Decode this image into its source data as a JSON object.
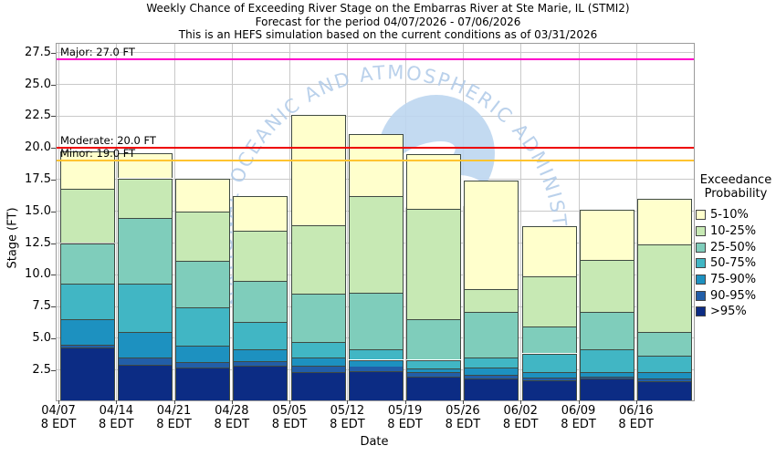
{
  "title": {
    "line1": "Weekly Chance of Exceeding River Stage on the Embarras River at Ste Marie, IL (STMI2)",
    "line2": "Forecast for the period 04/07/2026 - 07/06/2026",
    "line3": "This is an HEFS simulation based on the current conditions as of 03/31/2026"
  },
  "watermark": {
    "text": "NATIONAL OCEANIC AND ATMOSPHERIC ADMINISTRATION",
    "text_color": "#aec9e8",
    "emblem_color": "#bdd6f0"
  },
  "axes": {
    "y_label": "Stage (FT)",
    "x_label": "Date",
    "y_ticks": [
      "2.5",
      "5.0",
      "7.5",
      "10.0",
      "12.5",
      "15.0",
      "17.5",
      "20.0",
      "22.5",
      "25.0",
      "27.5"
    ],
    "x_ticks": [
      {
        "date": "04/07",
        "time": "8 EDT"
      },
      {
        "date": "04/14",
        "time": "8 EDT"
      },
      {
        "date": "04/21",
        "time": "8 EDT"
      },
      {
        "date": "04/28",
        "time": "8 EDT"
      },
      {
        "date": "05/05",
        "time": "8 EDT"
      },
      {
        "date": "05/12",
        "time": "8 EDT"
      },
      {
        "date": "05/19",
        "time": "8 EDT"
      },
      {
        "date": "05/26",
        "time": "8 EDT"
      },
      {
        "date": "06/02",
        "time": "8 EDT"
      },
      {
        "date": "06/09",
        "time": "8 EDT"
      },
      {
        "date": "06/16",
        "time": "8 EDT"
      }
    ]
  },
  "thresholds": [
    {
      "name": "Major",
      "label": "Major: 27.0 FT",
      "value": 27.0,
      "color": "#ff00cc"
    },
    {
      "name": "Moderate",
      "label": "Moderate: 20.0 FT",
      "value": 20.0,
      "color": "#ee0000"
    },
    {
      "name": "Minor",
      "label": "Minor: 19.0 FT",
      "value": 19.0,
      "color": "#ffc430"
    }
  ],
  "legend": {
    "title_line1": "Exceedance",
    "title_line2": "Probability",
    "items": [
      {
        "label": "5-10%",
        "color": "#ffffcc"
      },
      {
        "label": "10-25%",
        "color": "#c7e9b4"
      },
      {
        "label": "25-50%",
        "color": "#7fcdbb"
      },
      {
        "label": "50-75%",
        "color": "#41b6c4"
      },
      {
        "label": "75-90%",
        "color": "#1d91c0"
      },
      {
        "label": "90-95%",
        "color": "#225ea8"
      },
      {
        "label": ">95%",
        "color": "#0c2c84"
      }
    ]
  },
  "chart_data": {
    "type": "bar",
    "stacked": true,
    "title": "Weekly Chance of Exceeding River Stage on the Embarras River at Ste Marie, IL (STMI2)",
    "xlabel": "Date",
    "ylabel": "Stage (FT)",
    "ylim": [
      0.1,
      28.2
    ],
    "grid": true,
    "legend_position": "right",
    "categories": [
      "04/07",
      "04/14",
      "04/21",
      "04/28",
      "05/05",
      "05/12",
      "05/19",
      "05/26",
      "06/02",
      "06/09",
      "06/16"
    ],
    "series_note": "values are river stage (FT) at the top of each exceedance-probability band, stacked bottom-up from ylim minimum",
    "series": [
      {
        "name": ">95%",
        "color": "#0c2c84",
        "values": [
          4.3,
          2.9,
          2.7,
          2.8,
          2.3,
          2.4,
          2.0,
          1.8,
          1.7,
          1.8,
          1.6
        ]
      },
      {
        "name": "90-95%",
        "color": "#225ea8",
        "values": [
          4.5,
          3.5,
          3.1,
          3.2,
          2.8,
          2.8,
          2.3,
          2.1,
          1.9,
          2.0,
          1.8
        ]
      },
      {
        "name": "75-90%",
        "color": "#1d91c0",
        "values": [
          6.5,
          5.5,
          4.4,
          4.1,
          3.5,
          3.3,
          2.6,
          2.7,
          2.3,
          2.3,
          2.3
        ]
      },
      {
        "name": "50-75%",
        "color": "#41b6c4",
        "values": [
          9.3,
          9.3,
          7.4,
          6.3,
          4.7,
          4.1,
          3.3,
          3.5,
          3.8,
          4.1,
          3.6
        ]
      },
      {
        "name": "25-50%",
        "color": "#7fcdbb",
        "values": [
          12.5,
          14.5,
          11.1,
          9.5,
          8.5,
          8.6,
          6.5,
          7.1,
          5.9,
          7.1,
          5.5
        ]
      },
      {
        "name": "10-25%",
        "color": "#c7e9b4",
        "values": [
          16.8,
          17.6,
          15.0,
          13.5,
          13.9,
          16.2,
          15.2,
          8.9,
          9.9,
          11.2,
          12.4
        ]
      },
      {
        "name": "5-10%",
        "color": "#ffffcc",
        "values": [
          19.7,
          19.6,
          17.6,
          16.2,
          22.6,
          21.1,
          19.5,
          17.4,
          13.8,
          15.1,
          16.0
        ]
      }
    ],
    "threshold_lines": [
      {
        "label": "Major: 27.0 FT",
        "value": 27.0
      },
      {
        "label": "Moderate: 20.0 FT",
        "value": 20.0
      },
      {
        "label": "Minor: 19.0 FT",
        "value": 19.0
      }
    ]
  }
}
